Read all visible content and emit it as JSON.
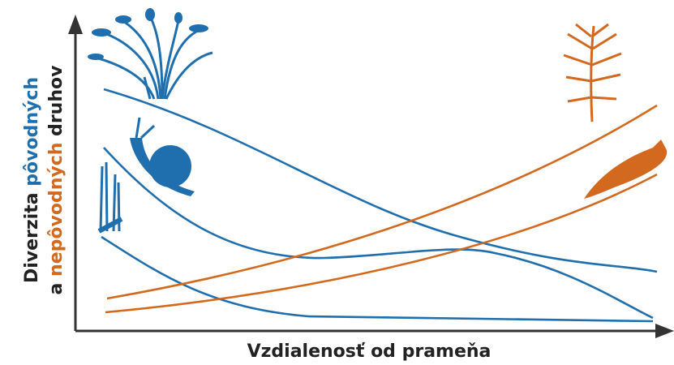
{
  "y_label": {
    "line1": [
      "Diverzita ",
      "pôvodných"
    ],
    "line2": [
      "a ",
      "nepôvodných",
      " druhov"
    ]
  },
  "x_label": "Vzdialenosť od prameňa"
}
